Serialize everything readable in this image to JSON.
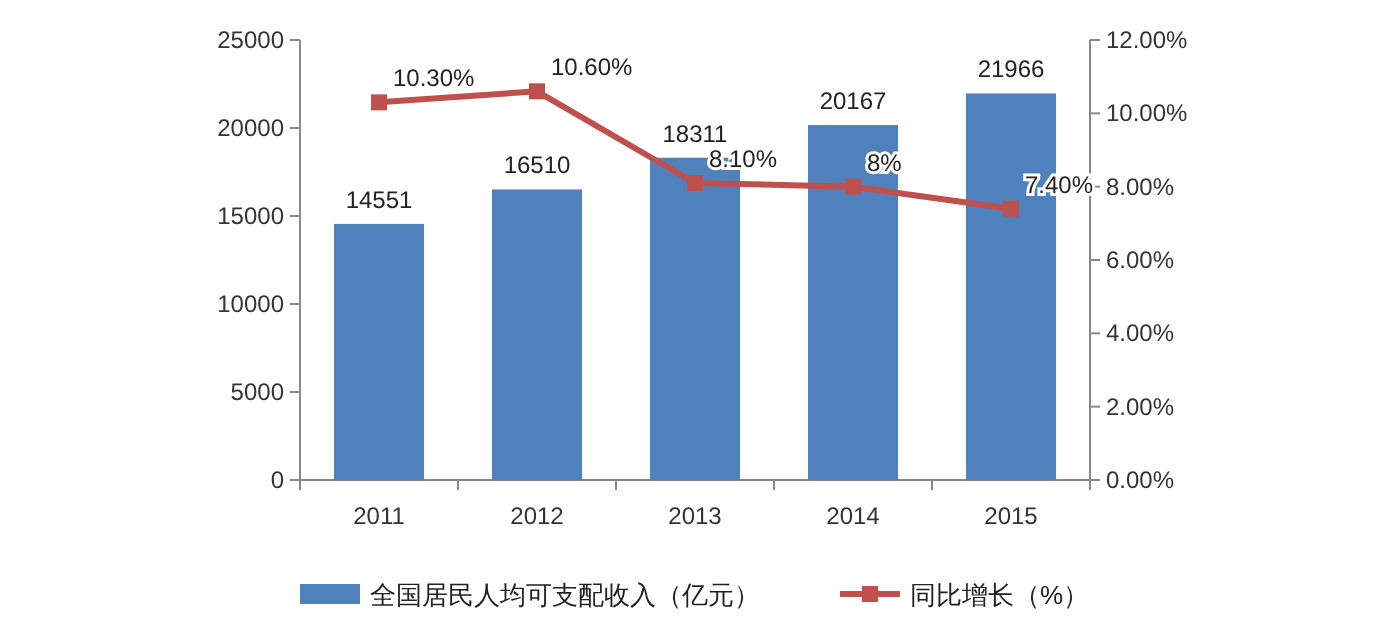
{
  "chart_data": {
    "type": "bar",
    "categories": [
      "2011",
      "2012",
      "2013",
      "2014",
      "2015"
    ],
    "ylim": [
      0,
      25000
    ],
    "yticks": [
      0,
      5000,
      10000,
      15000,
      20000,
      25000
    ],
    "y2lim": [
      0,
      12
    ],
    "y2ticks": [
      {
        "value": 0,
        "label": "0.00%"
      },
      {
        "value": 2,
        "label": "2.00%"
      },
      {
        "value": 4,
        "label": "4.00%"
      },
      {
        "value": 6,
        "label": "6.00%"
      },
      {
        "value": 8,
        "label": "8.00%"
      },
      {
        "value": 10,
        "label": "10.00%"
      },
      {
        "value": 12,
        "label": "12.00%"
      }
    ],
    "legend": "bottom",
    "series": [
      {
        "name": "全国居民人均可支配收入（亿元）",
        "color": "#4f81bd",
        "values": [
          14551,
          16510,
          18311,
          20167,
          21966
        ],
        "value_labels": [
          "14551",
          "16510",
          "18311",
          "20167",
          "21966"
        ]
      },
      {
        "name": "同比增长（%）",
        "type": "line",
        "axis": "y2",
        "marker": "square",
        "color": "#c0504d",
        "values": [
          10.3,
          10.6,
          8.1,
          8,
          7.4
        ],
        "value_labels": [
          "10.30%",
          "10.60%",
          "8.10%",
          "8%",
          "7.40%"
        ]
      }
    ]
  }
}
